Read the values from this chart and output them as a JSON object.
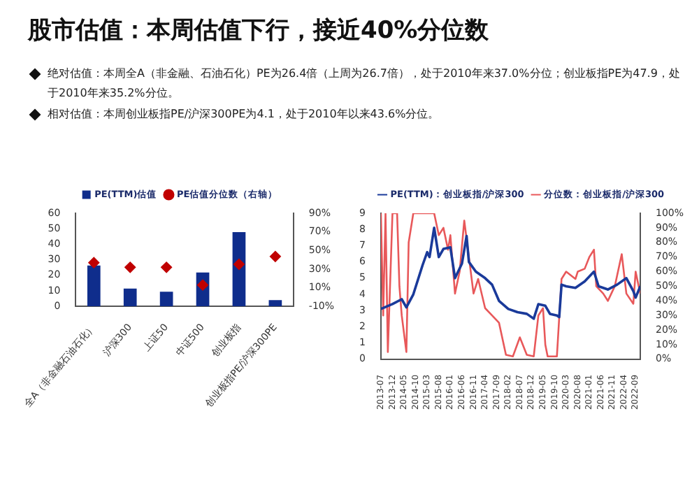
{
  "chart_data": [
    {
      "type": "bar",
      "title": "股市估值：本周估值下行，接近40%分位数",
      "annotations": [
        "绝对估值：本周全A（非金融、石油石化）PE为26.4倍（上周为26.7倍），处于2010年来37.0%分位；创业板指PE为47.9，处于2010年来35.2%分位。",
        "相对估值：本周创业板指PE/沪深300PE为4.1，处于2010年以来43.6%分位。"
      ],
      "categories": [
        "全A（非金融石油石化）",
        "沪深300",
        "上证50",
        "中证500",
        "创业板指",
        "创业板指PE/沪深300PE"
      ],
      "series": [
        {
          "name": "PE(TTM)估值",
          "type": "bar",
          "color": "#0f2d8c",
          "values": [
            26.4,
            11.5,
            9.5,
            21.8,
            47.9,
            4.1
          ]
        },
        {
          "name": "PE估值分位数（右轴）",
          "type": "scatter",
          "axis": "y2",
          "color": "#c00000",
          "marker": "diamond",
          "values": [
            37.0,
            32,
            32,
            13,
            35.2,
            43.6
          ]
        }
      ],
      "ylim": [
        0,
        60
      ],
      "yticks": [
        0,
        10,
        20,
        30,
        40,
        50,
        60
      ],
      "y2lim": [
        -10,
        90
      ],
      "y2ticks": [
        {
          "value": -10,
          "label": "-10%"
        },
        {
          "value": 10,
          "label": "10%"
        },
        {
          "value": 30,
          "label": "30%"
        },
        {
          "value": 50,
          "label": "50%"
        },
        {
          "value": 70,
          "label": "70%"
        },
        {
          "value": 90,
          "label": "90%"
        }
      ],
      "grid": false,
      "legend": "top"
    },
    {
      "type": "line",
      "line_style": "solid",
      "marker": "none",
      "series": [
        {
          "name": "PE(TTM)：创业板指/沪深300",
          "color": "#1a3a9a",
          "x": [
            "2013-07",
            "2013-12",
            "2014-04",
            "2014-06",
            "2014-09",
            "2015-01",
            "2015-03",
            "2015-04",
            "2015-06",
            "2015-08",
            "2015-10",
            "2016-01",
            "2016-03",
            "2016-06",
            "2016-08",
            "2016-09",
            "2016-12",
            "2017-04",
            "2017-07",
            "2017-10",
            "2018-02",
            "2018-06",
            "2018-10",
            "2019-01",
            "2019-03",
            "2019-06",
            "2019-08",
            "2019-11",
            "2019-12",
            "2020-01",
            "2020-03",
            "2020-07",
            "2020-11",
            "2021-03",
            "2021-05",
            "2021-09",
            "2022-01",
            "2022-05",
            "2022-08",
            "2022-09",
            "2022-11"
          ],
          "values": [
            3.1,
            3.4,
            3.7,
            3.2,
            4.0,
            5.8,
            6.6,
            6.3,
            8.1,
            6.3,
            6.8,
            6.9,
            5.0,
            5.9,
            7.6,
            6.0,
            5.4,
            5.0,
            4.6,
            3.6,
            3.1,
            2.9,
            2.8,
            2.5,
            3.4,
            3.3,
            2.8,
            2.7,
            2.6,
            4.6,
            4.5,
            4.4,
            4.8,
            5.4,
            4.5,
            4.3,
            4.6,
            5.0,
            4.2,
            3.8,
            4.5
          ]
        },
        {
          "name": "分位数：创业板指/沪深300",
          "axis": "y2",
          "color": "#e8585a",
          "x": [
            "2013-07",
            "2013-08",
            "2013-09",
            "2013-10",
            "2013-12",
            "2014-02",
            "2014-03",
            "2014-04",
            "2014-06",
            "2014-07",
            "2014-09",
            "2015-06",
            "2015-08",
            "2015-10",
            "2015-12",
            "2016-01",
            "2016-03",
            "2016-05",
            "2016-07",
            "2016-09",
            "2016-11",
            "2017-01",
            "2017-04",
            "2017-07",
            "2017-10",
            "2018-01",
            "2018-04",
            "2018-07",
            "2018-10",
            "2019-01",
            "2019-03",
            "2019-05",
            "2019-06",
            "2019-07",
            "2019-11",
            "2020-01",
            "2020-03",
            "2020-07",
            "2020-08",
            "2020-11",
            "2021-01",
            "2021-03",
            "2021-04",
            "2021-07",
            "2021-09",
            "2021-12",
            "2022-03",
            "2022-05",
            "2022-08",
            "2022-09",
            "2022-11"
          ],
          "values": [
            100,
            30,
            100,
            5,
            100,
            100,
            50,
            30,
            5,
            80,
            100,
            100,
            85,
            90,
            75,
            85,
            45,
            60,
            95,
            70,
            45,
            55,
            35,
            30,
            25,
            3,
            2,
            15,
            3,
            2,
            30,
            35,
            10,
            2,
            2,
            55,
            60,
            55,
            60,
            62,
            70,
            75,
            50,
            45,
            40,
            50,
            72,
            45,
            38,
            60,
            45
          ]
        }
      ],
      "xlim": [
        "2013-07",
        "2022-11"
      ],
      "xticks": [
        "2013-07",
        "2013-12",
        "2014-05",
        "2014-10",
        "2015-03",
        "2015-08",
        "2016-01",
        "2016-06",
        "2016-11",
        "2017-04",
        "2017-09",
        "2018-02",
        "2018-07",
        "2018-12",
        "2019-05",
        "2019-10",
        "2020-03",
        "2020-08",
        "2021-01",
        "2021-06",
        "2021-11",
        "2022-04",
        "2022-09"
      ],
      "ylim": [
        0,
        9
      ],
      "yticks": [
        0,
        1,
        2,
        3,
        4,
        5,
        6,
        7,
        8,
        9
      ],
      "y2lim": [
        0,
        100
      ],
      "y2ticks": [
        {
          "value": 0,
          "label": "0%"
        },
        {
          "value": 10,
          "label": "10%"
        },
        {
          "value": 20,
          "label": "20%"
        },
        {
          "value": 30,
          "label": "30%"
        },
        {
          "value": 40,
          "label": "40%"
        },
        {
          "value": 50,
          "label": "50%"
        },
        {
          "value": 60,
          "label": "60%"
        },
        {
          "value": 70,
          "label": "70%"
        },
        {
          "value": 80,
          "label": "80%"
        },
        {
          "value": 90,
          "label": "90%"
        },
        {
          "value": 100,
          "label": "100%"
        }
      ],
      "grid": false,
      "legend": "top"
    }
  ]
}
